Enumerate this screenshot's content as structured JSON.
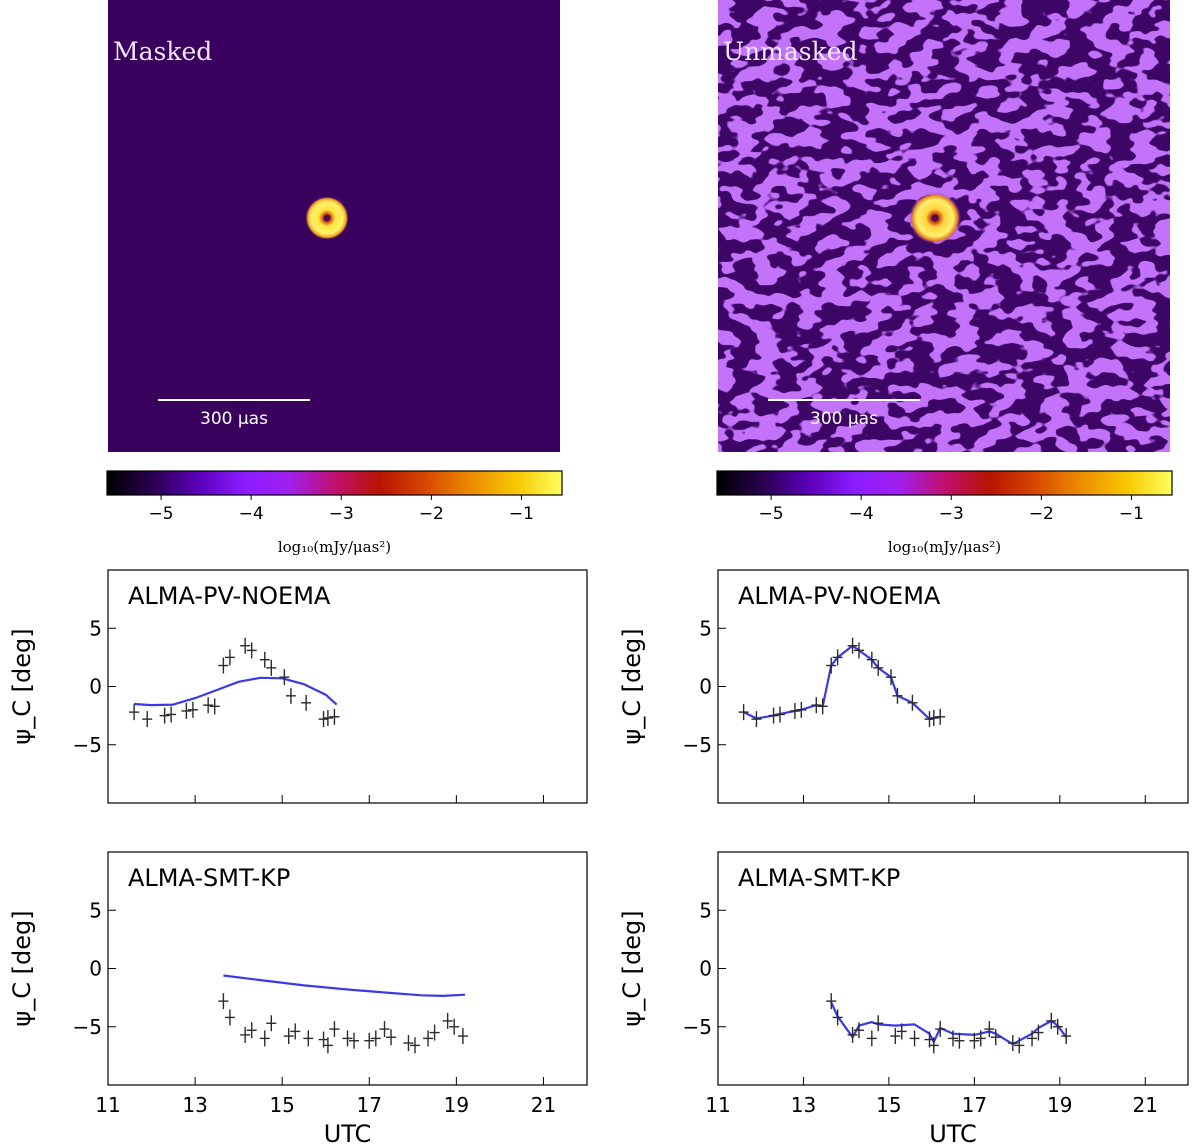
{
  "images": [
    {
      "label": "Masked",
      "scalebar_label": "300 μas",
      "kind": "masked"
    },
    {
      "label": "Unmasked",
      "scalebar_label": "300 μas",
      "kind": "unmasked"
    }
  ],
  "colorbar": {
    "ticks": [
      "−5",
      "−4",
      "−3",
      "−2",
      "−1"
    ],
    "tick_values": [
      -5,
      -4,
      -3,
      -2,
      -1
    ],
    "range": [
      -5.6,
      -0.55
    ],
    "label": "log₁₀(mJy/μas²)",
    "stops": [
      "#000000",
      "#2a004f",
      "#5a00b8",
      "#8a1cff",
      "#a020f0",
      "#c01070",
      "#b81400",
      "#d84800",
      "#ec8c00",
      "#f8c800",
      "#ffff60"
    ]
  },
  "colors": {
    "model_line": "#3a3ae6",
    "data_marker": "#2b2b2b",
    "masked_bg": "#3a005e",
    "unmasked_bg": "#3c0566",
    "unmasked_blob": "#8b2bf2"
  },
  "chart_data": [
    {
      "type": "line",
      "title": "ALMA-PV-NOEMA",
      "ylabel": "ψ_C [deg]",
      "xlabel": "",
      "xlim": [
        11,
        22
      ],
      "ylim": [
        -10,
        10
      ],
      "yticks": [
        5,
        0,
        -5
      ],
      "xticks": [
        11,
        13,
        15,
        17,
        19,
        21
      ],
      "show_xticklabels": false,
      "model": {
        "x": [
          11.6,
          12.0,
          12.5,
          13.0,
          13.5,
          14.0,
          14.5,
          15.0,
          15.5,
          16.0,
          16.25
        ],
        "y": [
          -1.5,
          -1.6,
          -1.55,
          -1.0,
          -0.3,
          0.4,
          0.75,
          0.7,
          0.2,
          -0.7,
          -1.55
        ]
      },
      "data": {
        "x": [
          11.6,
          11.9,
          12.3,
          12.45,
          12.8,
          12.95,
          13.3,
          13.45,
          13.65,
          13.8,
          14.15,
          14.3,
          14.6,
          14.75,
          15.05,
          15.2,
          15.55,
          15.95,
          16.05,
          16.2
        ],
        "y": [
          -2.2,
          -2.8,
          -2.5,
          -2.4,
          -2.1,
          -2.0,
          -1.6,
          -1.7,
          1.8,
          2.5,
          3.5,
          3.1,
          2.3,
          1.6,
          0.8,
          -0.8,
          -1.4,
          -2.8,
          -2.7,
          -2.6
        ]
      }
    },
    {
      "type": "line",
      "title": "ALMA-PV-NOEMA",
      "ylabel": "ψ_C [deg]",
      "xlabel": "",
      "xlim": [
        11,
        22
      ],
      "ylim": [
        -10,
        10
      ],
      "yticks": [
        5,
        0,
        -5
      ],
      "xticks": [
        11,
        13,
        15,
        17,
        19,
        21
      ],
      "show_xticklabels": false,
      "model": {
        "x": [
          11.6,
          11.9,
          12.3,
          12.45,
          12.8,
          12.95,
          13.3,
          13.45,
          13.65,
          13.8,
          14.15,
          14.3,
          14.6,
          14.75,
          15.05,
          15.2,
          15.55,
          15.95,
          16.05,
          16.2
        ],
        "y": [
          -2.2,
          -2.75,
          -2.5,
          -2.35,
          -2.1,
          -2.0,
          -1.6,
          -1.7,
          1.8,
          2.5,
          3.5,
          3.1,
          2.3,
          1.6,
          0.8,
          -0.8,
          -1.4,
          -2.8,
          -2.7,
          -2.6
        ]
      },
      "data": {
        "x": [
          11.6,
          11.9,
          12.3,
          12.45,
          12.8,
          12.95,
          13.3,
          13.45,
          13.65,
          13.8,
          14.15,
          14.3,
          14.6,
          14.75,
          15.05,
          15.2,
          15.55,
          15.95,
          16.05,
          16.2
        ],
        "y": [
          -2.2,
          -2.8,
          -2.5,
          -2.4,
          -2.1,
          -2.0,
          -1.6,
          -1.7,
          1.8,
          2.5,
          3.5,
          3.1,
          2.3,
          1.6,
          0.8,
          -0.8,
          -1.4,
          -2.8,
          -2.7,
          -2.6
        ]
      }
    },
    {
      "type": "line",
      "title": "ALMA-SMT-KP",
      "ylabel": "ψ_C [deg]",
      "xlabel": "UTC",
      "xlim": [
        11,
        22
      ],
      "ylim": [
        -10,
        10
      ],
      "yticks": [
        5,
        0,
        -5
      ],
      "xticks": [
        11,
        13,
        15,
        17,
        19,
        21
      ],
      "show_xticklabels": true,
      "model": {
        "x": [
          13.65,
          14.5,
          15.5,
          16.5,
          17.5,
          18.2,
          18.7,
          19.2
        ],
        "y": [
          -0.6,
          -1.0,
          -1.45,
          -1.8,
          -2.1,
          -2.3,
          -2.35,
          -2.25
        ]
      },
      "data": {
        "x": [
          13.65,
          13.8,
          14.15,
          14.3,
          14.6,
          14.75,
          15.15,
          15.3,
          15.6,
          15.95,
          16.05,
          16.2,
          16.5,
          16.65,
          17.0,
          17.15,
          17.35,
          17.5,
          17.9,
          18.05,
          18.35,
          18.5,
          18.8,
          18.95,
          19.15
        ],
        "y": [
          -2.8,
          -4.2,
          -5.7,
          -5.3,
          -6.0,
          -4.7,
          -5.8,
          -5.4,
          -6.0,
          -6.1,
          -6.6,
          -5.2,
          -6.0,
          -6.2,
          -6.2,
          -6.0,
          -5.2,
          -5.9,
          -6.4,
          -6.6,
          -6.0,
          -5.5,
          -4.5,
          -5.0,
          -5.8
        ]
      }
    },
    {
      "type": "line",
      "title": "ALMA-SMT-KP",
      "ylabel": "ψ_C [deg]",
      "xlabel": "UTC",
      "xlim": [
        11,
        22
      ],
      "ylim": [
        -10,
        10
      ],
      "yticks": [
        5,
        0,
        -5
      ],
      "xticks": [
        11,
        13,
        15,
        17,
        19,
        21
      ],
      "show_xticklabels": true,
      "model": {
        "x": [
          13.65,
          13.8,
          14.15,
          14.3,
          14.6,
          14.75,
          15.15,
          15.6,
          15.95,
          16.05,
          16.2,
          16.5,
          17.0,
          17.35,
          17.5,
          17.9,
          18.05,
          18.35,
          18.5,
          18.8,
          18.95,
          19.15
        ],
        "y": [
          -2.9,
          -4.1,
          -5.9,
          -4.9,
          -4.6,
          -4.8,
          -4.9,
          -4.8,
          -5.6,
          -6.3,
          -5.1,
          -5.6,
          -5.7,
          -5.4,
          -5.6,
          -6.5,
          -6.2,
          -5.6,
          -5.1,
          -4.5,
          -4.9,
          -5.9
        ]
      },
      "data": {
        "x": [
          13.65,
          13.8,
          14.15,
          14.3,
          14.6,
          14.75,
          15.15,
          15.3,
          15.6,
          15.95,
          16.05,
          16.2,
          16.5,
          16.65,
          17.0,
          17.15,
          17.35,
          17.5,
          17.9,
          18.05,
          18.35,
          18.5,
          18.8,
          18.95,
          19.15
        ],
        "y": [
          -2.8,
          -4.2,
          -5.7,
          -5.3,
          -6.0,
          -4.7,
          -5.8,
          -5.4,
          -6.0,
          -6.1,
          -6.6,
          -5.2,
          -6.0,
          -6.2,
          -6.2,
          -6.0,
          -5.2,
          -5.9,
          -6.4,
          -6.6,
          -6.0,
          -5.5,
          -4.5,
          -5.0,
          -5.8
        ]
      }
    }
  ]
}
